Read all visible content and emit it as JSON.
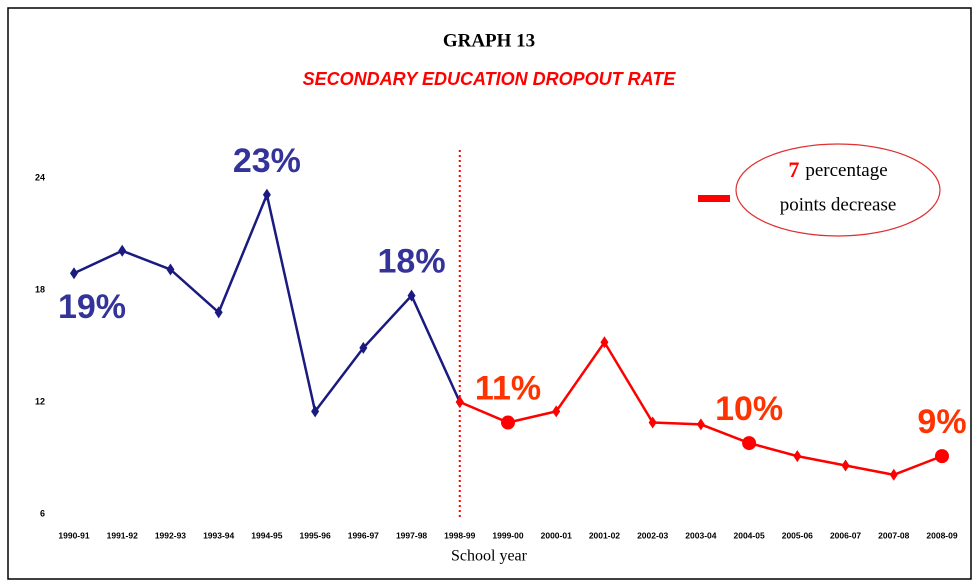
{
  "chart_data": {
    "type": "line",
    "title": "GRAPH 13",
    "subtitle": "SECONDARY EDUCATION DROPOUT RATE",
    "x_label": "School year",
    "categories": [
      "1990-91",
      "1991-92",
      "1992-93",
      "1993-94",
      "1994-95",
      "1995-96",
      "1996-97",
      "1997-98",
      "1998-99",
      "1999-00",
      "2000-01",
      "2001-02",
      "2002-03",
      "2003-04",
      "2004-05",
      "2005-06",
      "2006-07",
      "2007-08",
      "2008-09"
    ],
    "series": [
      {
        "color": "#1a1a80",
        "label_color": "#333399",
        "values": [
          18.9,
          20.1,
          19.1,
          16.8,
          23.1,
          11.5,
          14.9,
          17.7,
          12.0,
          null,
          null,
          null,
          null,
          null,
          null,
          null,
          null,
          null,
          null
        ],
        "value_labels": [
          "19%",
          null,
          null,
          null,
          "23%",
          null,
          null,
          "18%",
          null,
          null,
          null,
          null,
          null,
          null,
          null,
          null,
          null,
          null,
          null
        ]
      },
      {
        "color": "#ff0000",
        "label_color": "#ff3300",
        "label_marker": "circle",
        "values": [
          null,
          null,
          null,
          null,
          null,
          null,
          null,
          null,
          12.0,
          10.9,
          11.5,
          15.2,
          10.9,
          10.8,
          9.8,
          9.1,
          8.6,
          8.1,
          9.1
        ],
        "value_labels": [
          null,
          null,
          null,
          null,
          null,
          null,
          null,
          null,
          null,
          "11%",
          null,
          null,
          null,
          null,
          "10%",
          null,
          null,
          null,
          "9%"
        ]
      }
    ],
    "ylim": [
      6,
      24
    ],
    "yticks": [
      6,
      12,
      18,
      24
    ],
    "callout": {
      "number": "7",
      "text": [
        "percentage",
        "points decrease"
      ]
    }
  }
}
